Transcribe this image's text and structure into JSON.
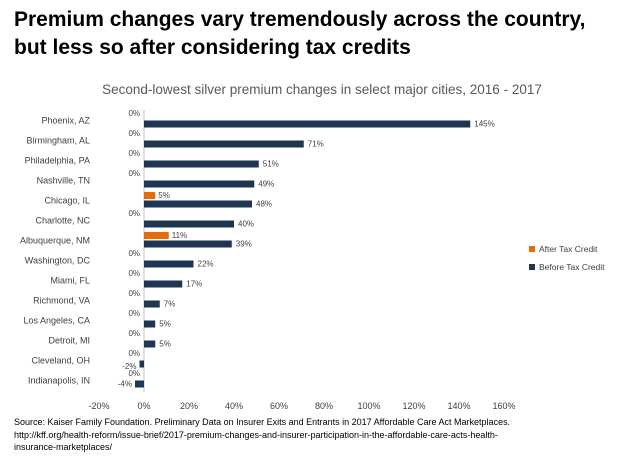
{
  "headline": {
    "line1": "Premium changes vary tremendously across the country,",
    "line2": "but less so after considering tax credits"
  },
  "chart_data": {
    "type": "bar",
    "orientation": "horizontal",
    "title": "Second-lowest silver premium changes in select major cities, 2016 - 2017",
    "categories": [
      "Phoenix, AZ",
      "Birmingham, AL",
      "Philadelphia, PA",
      "Nashville, TN",
      "Chicago, IL",
      "Charlotte, NC",
      "Albuquerque, NM",
      "Washington, DC",
      "Miami, FL",
      "Richmond, VA",
      "Los Angeles, CA",
      "Detroit, MI",
      "Cleveland, OH",
      "Indianapolis, IN"
    ],
    "series": [
      {
        "name": "After Tax Credit",
        "color": "#E46C0A",
        "label_color": "#F79646",
        "values": [
          0,
          0,
          0,
          0,
          5,
          0,
          11,
          0,
          0,
          0,
          0,
          0,
          0,
          0
        ],
        "labels": [
          "0%",
          "0%",
          "0%",
          "0%",
          "5%",
          "0%",
          "11%",
          "0%",
          "0%",
          "0%",
          "0%",
          "0%",
          "0%",
          "0%"
        ]
      },
      {
        "name": "Before Tax Credit",
        "color": "#1F3552",
        "label_color": "#404040",
        "values": [
          145,
          71,
          51,
          49,
          48,
          40,
          39,
          22,
          17,
          7,
          5,
          5,
          -2,
          -4
        ],
        "labels": [
          "145%",
          "71%",
          "51%",
          "49%",
          "48%",
          "40%",
          "39%",
          "22%",
          "17%",
          "7%",
          "5%",
          "5%",
          "-2%",
          "-4%"
        ]
      }
    ],
    "xlim": [
      -20,
      160
    ],
    "xticks": [
      -20,
      0,
      20,
      40,
      60,
      80,
      100,
      120,
      140,
      160
    ],
    "xtick_labels": [
      "-20%",
      "0%",
      "20%",
      "40%",
      "60%",
      "80%",
      "100%",
      "120%",
      "140%",
      "160%"
    ],
    "legend_position": "right",
    "gridlines": false
  },
  "source": {
    "line1": "Source: Kaiser Family Foundation. Preliminary Data on Insurer Exits and Entrants in 2017 Affordable Care Act Marketplaces.",
    "line2": "http://kff.org/health-reform/issue-brief/2017-premium-changes-and-insurer-participation-in-the-affordable-care-acts-health-",
    "line3": "insurance-marketplaces/"
  }
}
